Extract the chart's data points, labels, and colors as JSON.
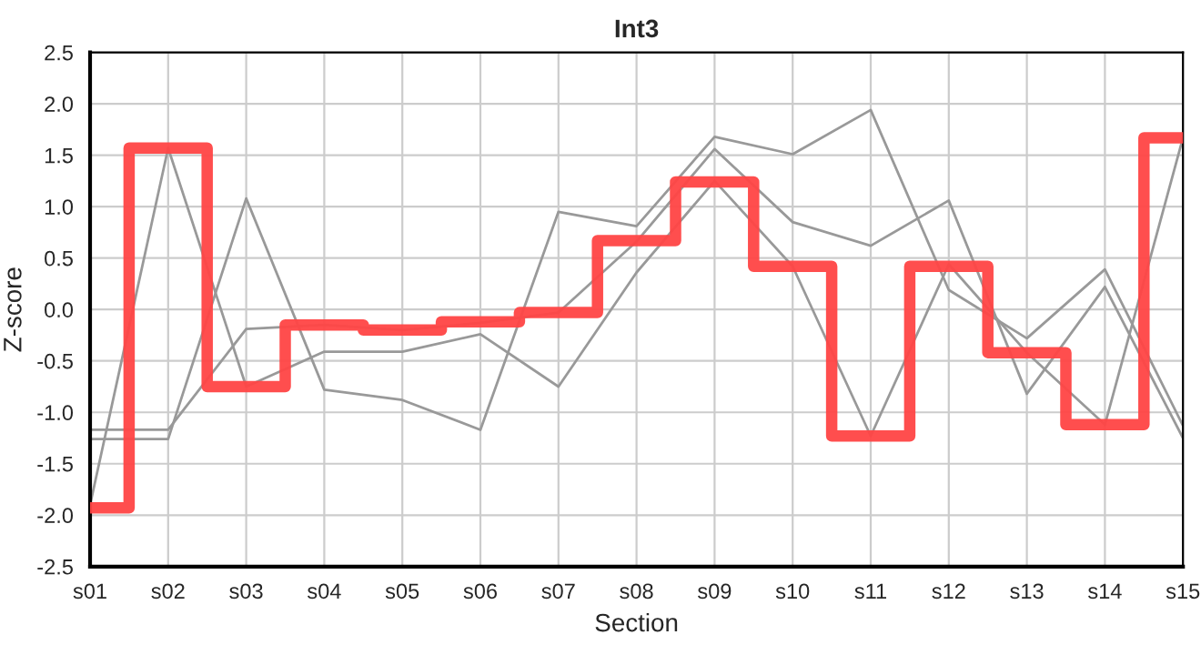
{
  "chart_data": {
    "type": "line",
    "title": "Int3",
    "xlabel": "Section",
    "ylabel": "Z-score",
    "categories": [
      "s01",
      "s02",
      "s03",
      "s04",
      "s05",
      "s06",
      "s07",
      "s08",
      "s09",
      "s10",
      "s11",
      "s12",
      "s13",
      "s14",
      "s15"
    ],
    "series": [
      {
        "color": "#999999",
        "values": [
          -1.9,
          1.57,
          -0.75,
          -0.41,
          -0.41,
          -0.24,
          -0.75,
          0.36,
          1.25,
          0.42,
          -1.23,
          0.44,
          -0.42,
          -1.12,
          1.67
        ]
      },
      {
        "color": "#999999",
        "values": [
          -1.26,
          -1.26,
          1.08,
          -0.78,
          -0.88,
          -1.17,
          0.95,
          0.81,
          1.68,
          1.51,
          1.94,
          0.19,
          -0.28,
          0.39,
          -1.13
        ]
      },
      {
        "color": "#999999",
        "values": [
          -1.17,
          -1.17,
          -0.19,
          -0.15,
          -0.2,
          -0.13,
          -0.03,
          0.66,
          1.56,
          0.85,
          0.62,
          1.06,
          -0.82,
          0.22,
          -1.25
        ]
      },
      {
        "type": "step",
        "color": "#ff4444",
        "values": [
          -1.93,
          1.57,
          -0.75,
          -0.15,
          -0.2,
          -0.12,
          -0.03,
          0.67,
          1.24,
          0.42,
          -1.23,
          0.42,
          -0.42,
          -1.12,
          1.67
        ]
      }
    ],
    "ylim": [
      -2.5,
      2.5
    ],
    "yticks": [
      -2.5,
      {
        "value": -2,
        "label": "-2.0"
      },
      -1.5,
      {
        "value": -1,
        "label": "-1.0"
      },
      -0.5,
      {
        "value": 0,
        "label": "0.0"
      },
      0.5,
      {
        "value": 1,
        "label": "1.0"
      },
      1.5,
      {
        "value": 2,
        "label": "2.0"
      },
      2.5
    ],
    "grid": true,
    "legend": false
  }
}
